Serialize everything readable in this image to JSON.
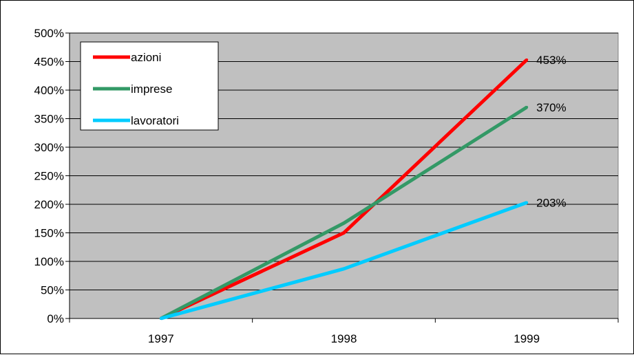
{
  "chart_data": {
    "type": "line",
    "categories": [
      "1997",
      "1998",
      "1999"
    ],
    "series": [
      {
        "name": "azioni",
        "values": [
          0,
          150,
          453
        ],
        "color": "#ff0000"
      },
      {
        "name": "imprese",
        "values": [
          0,
          167,
          370
        ],
        "color": "#339966"
      },
      {
        "name": "lavoratori",
        "values": [
          0,
          87,
          203
        ],
        "color": "#00ccff"
      }
    ],
    "data_labels": [
      "453%",
      "370%",
      "203%"
    ],
    "y_tick_labels": [
      "0%",
      "50%",
      "100%",
      "150%",
      "200%",
      "250%",
      "300%",
      "350%",
      "400%",
      "450%",
      "500%"
    ],
    "ylim": [
      0,
      500
    ],
    "y_unit": "%",
    "grid": true,
    "plot_background": "#c0c0c0",
    "legend": "top-left",
    "title": "",
    "xlabel": "",
    "ylabel": ""
  }
}
